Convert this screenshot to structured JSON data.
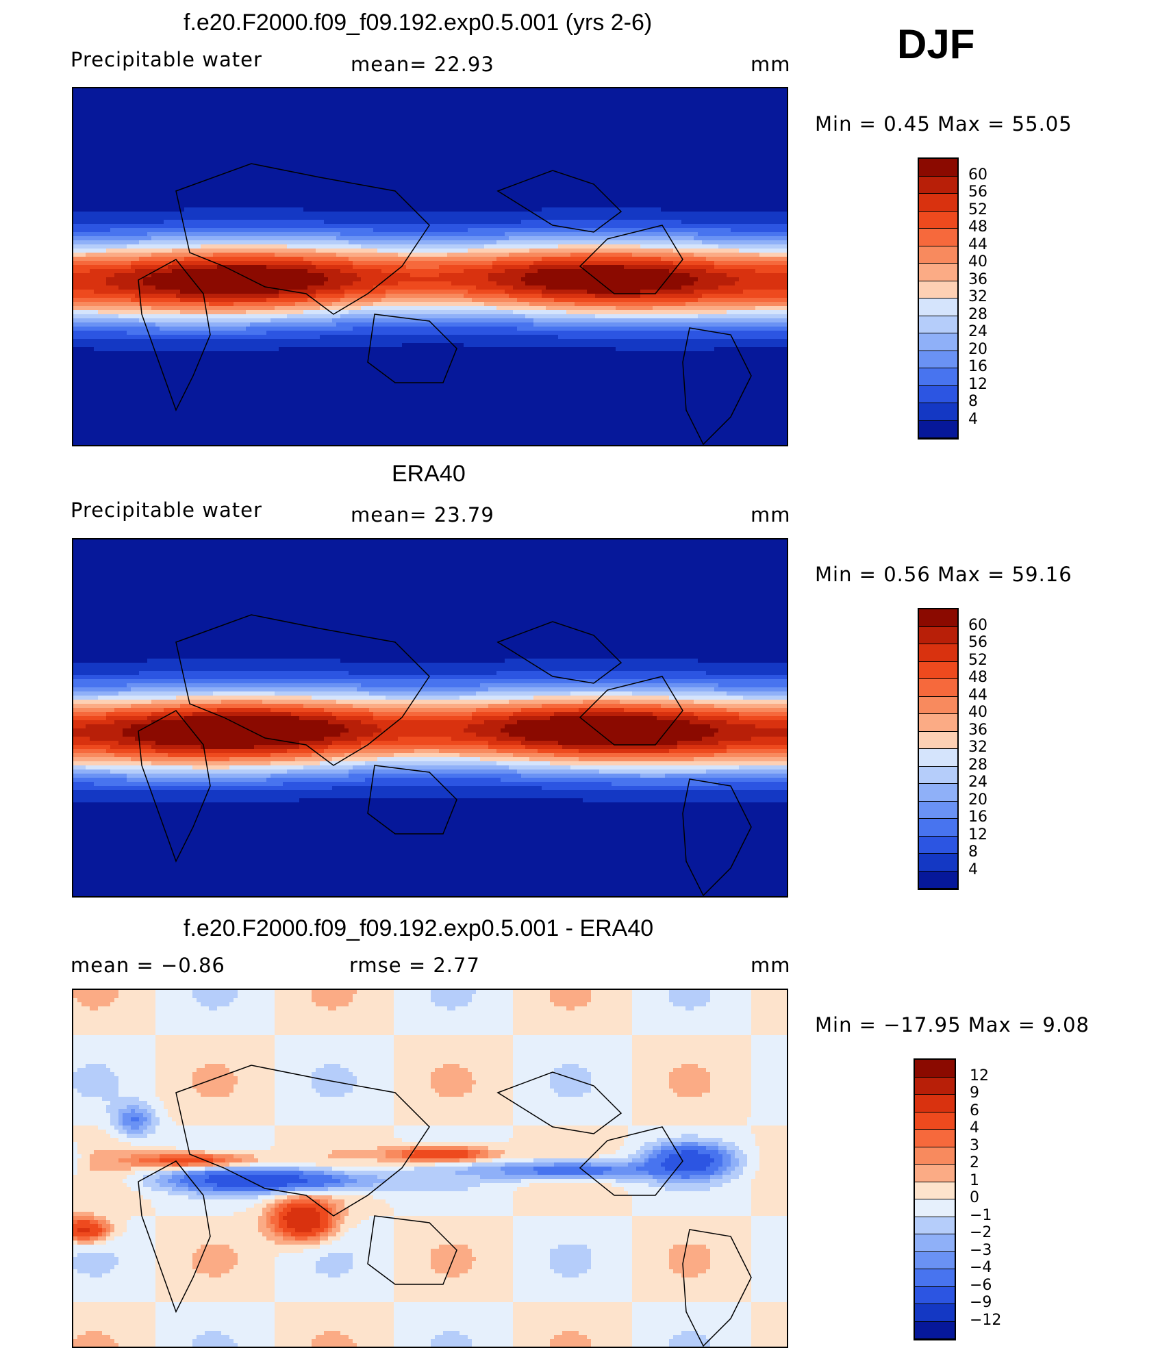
{
  "season": "DJF",
  "colors": {
    "contour_palette": [
      "#00007f",
      "#0a1ea8",
      "#0d2fc8",
      "#1a44e0",
      "#2d5ff0",
      "#4b7ef6",
      "#6f9af7",
      "#98b8fa",
      "#c3d6fb",
      "#e6f0fc",
      "#fde3cc",
      "#fbc39e",
      "#f89d6e",
      "#f37445",
      "#e84a1e",
      "#d22e10",
      "#a81a08",
      "#7f0a00"
    ],
    "land_outline": "#000000"
  },
  "panels": [
    {
      "id": "model",
      "title": "f.e20.F2000.f09_f09.192.exp0.5.001 (yrs 2-6)",
      "left_label": "Precipitable  water",
      "center_label": "mean=   22.93",
      "units": "mm",
      "stats": "Min  =     0.45  Max  =    55.05",
      "colorbar_levels": [
        "60",
        "56",
        "52",
        "48",
        "44",
        "40",
        "36",
        "32",
        "28",
        "24",
        "20",
        "16",
        "12",
        "8",
        "4"
      ],
      "colorbar_colors": [
        "#8b0a00",
        "#b81f08",
        "#d9320f",
        "#ee4a1e",
        "#f6693c",
        "#f88a5e",
        "#fbab85",
        "#fdd0b4",
        "#d5e4fc",
        "#b5cdfa",
        "#8fb0f8",
        "#6a92f4",
        "#4874ef",
        "#2c55e2",
        "#1438c4",
        "#06189a"
      ]
    },
    {
      "id": "obs",
      "title": "ERA40",
      "left_label": "Precipitable  water",
      "center_label": "mean=   23.79",
      "units": "mm",
      "stats": "Min  =     0.56  Max  =    59.16",
      "colorbar_levels": [
        "60",
        "56",
        "52",
        "48",
        "44",
        "40",
        "36",
        "32",
        "28",
        "24",
        "20",
        "16",
        "12",
        "8",
        "4"
      ],
      "colorbar_colors": [
        "#8b0a00",
        "#b81f08",
        "#d9320f",
        "#ee4a1e",
        "#f6693c",
        "#f88a5e",
        "#fbab85",
        "#fdd0b4",
        "#d5e4fc",
        "#b5cdfa",
        "#8fb0f8",
        "#6a92f4",
        "#4874ef",
        "#2c55e2",
        "#1438c4",
        "#06189a"
      ]
    },
    {
      "id": "diff",
      "title": "f.e20.F2000.f09_f09.192.exp0.5.001 - ERA40",
      "left_label": "mean  =    −0.86",
      "center_label": "rmse  =     2.77",
      "units": "mm",
      "stats": "Min  = −17.95  Max  =      9.08",
      "colorbar_levels": [
        "12",
        "9",
        "6",
        "4",
        "3",
        "2",
        "1",
        "0",
        "−1",
        "−2",
        "−3",
        "−4",
        "−6",
        "−9",
        "−12"
      ],
      "colorbar_colors": [
        "#8b0a00",
        "#b81f08",
        "#d9320f",
        "#ee4a1e",
        "#f6693c",
        "#f88a5e",
        "#fbab85",
        "#fde3cc",
        "#e6f0fc",
        "#b5cdfa",
        "#8fb0f8",
        "#6a92f4",
        "#4874ef",
        "#2c55e2",
        "#1438c4",
        "#06189a"
      ]
    }
  ]
}
